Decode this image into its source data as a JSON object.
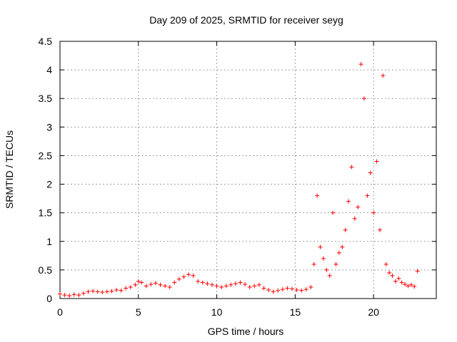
{
  "chart_data": {
    "type": "scatter",
    "title": "Day 209 of 2025, SRMTID for receiver seyg",
    "xlabel": "GPS time / hours",
    "ylabel": "SRMTID / TECUs",
    "xlim": [
      0,
      24
    ],
    "ylim": [
      0,
      4.5
    ],
    "grid": true,
    "marker": "+",
    "color": "#ff0000",
    "x_ticks": [
      0,
      5,
      10,
      15,
      20
    ],
    "x_tick_labels": [
      "0",
      "5",
      "10",
      "15",
      "20"
    ],
    "y_ticks": [
      0,
      0.5,
      1,
      1.5,
      2,
      2.5,
      3,
      3.5,
      4,
      4.5
    ],
    "y_tick_labels": [
      "0",
      "0.5",
      "1",
      "1.5",
      "2",
      "2.5",
      "3",
      "3.5",
      "4",
      "4.5"
    ],
    "series": [
      {
        "name": "seyg",
        "x": [
          0.0,
          0.3,
          0.6,
          0.9,
          1.2,
          1.5,
          1.8,
          2.1,
          2.4,
          2.7,
          3.0,
          3.3,
          3.6,
          3.9,
          4.2,
          4.5,
          4.8,
          5.0,
          5.2,
          5.5,
          5.8,
          6.1,
          6.4,
          6.7,
          7.0,
          7.3,
          7.6,
          7.9,
          8.2,
          8.5,
          8.8,
          9.1,
          9.4,
          9.7,
          10.0,
          10.3,
          10.6,
          10.9,
          11.2,
          11.5,
          11.8,
          12.1,
          12.4,
          12.7,
          13.0,
          13.3,
          13.6,
          13.9,
          14.2,
          14.5,
          14.8,
          15.1,
          15.4,
          15.7,
          16.0,
          16.2,
          16.4,
          16.6,
          16.8,
          17.0,
          17.2,
          17.4,
          17.6,
          17.8,
          18.0,
          18.2,
          18.4,
          18.6,
          18.8,
          19.0,
          19.2,
          19.4,
          19.6,
          19.8,
          20.0,
          20.2,
          20.4,
          20.6,
          20.8,
          21.0,
          21.2,
          21.4,
          21.6,
          21.8,
          22.0,
          22.2,
          22.4,
          22.6,
          22.8
        ],
        "y": [
          0.08,
          0.06,
          0.05,
          0.07,
          0.06,
          0.09,
          0.12,
          0.13,
          0.12,
          0.11,
          0.12,
          0.13,
          0.15,
          0.14,
          0.18,
          0.2,
          0.24,
          0.3,
          0.28,
          0.22,
          0.25,
          0.27,
          0.24,
          0.22,
          0.2,
          0.28,
          0.34,
          0.38,
          0.42,
          0.4,
          0.3,
          0.28,
          0.26,
          0.24,
          0.22,
          0.2,
          0.22,
          0.24,
          0.26,
          0.28,
          0.25,
          0.2,
          0.22,
          0.24,
          0.18,
          0.15,
          0.12,
          0.14,
          0.16,
          0.18,
          0.17,
          0.15,
          0.14,
          0.16,
          0.2,
          0.6,
          1.8,
          0.9,
          0.7,
          0.5,
          0.4,
          1.5,
          0.6,
          0.8,
          0.9,
          1.2,
          1.7,
          2.3,
          1.4,
          1.6,
          4.1,
          3.5,
          1.8,
          2.2,
          1.5,
          2.4,
          1.2,
          3.9,
          0.6,
          0.45,
          0.4,
          0.3,
          0.35,
          0.28,
          0.25,
          0.22,
          0.24,
          0.21,
          0.48
        ]
      }
    ]
  }
}
